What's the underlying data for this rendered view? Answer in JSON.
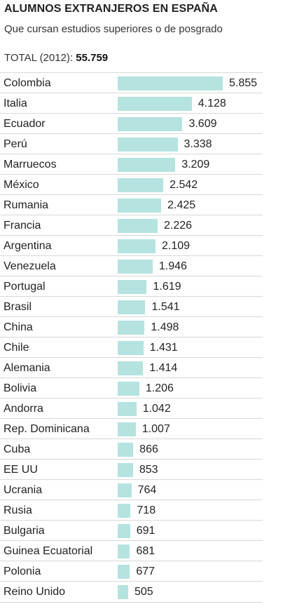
{
  "title": "ALUMNOS EXTRANJEROS EN ESPAÑA",
  "subtitle": "Que cursan estudios superiores o de posgrado",
  "total_label": "TOTAL (2012):",
  "total_value": "55.759",
  "colors": {
    "bar": "#b5e3df",
    "divider": "#d8d8d8",
    "text": "#222222"
  },
  "chart_data": {
    "type": "bar",
    "orientation": "horizontal",
    "categories": [
      "Colombia",
      "Italia",
      "Ecuador",
      "Perú",
      "Marruecos",
      "México",
      "Rumania",
      "Francia",
      "Argentina",
      "Venezuela",
      "Portugal",
      "Brasil",
      "China",
      "Chile",
      "Alemania",
      "Bolivia",
      "Andorra",
      "Rep. Dominicana",
      "Cuba",
      "EE UU",
      "Ucrania",
      "Rusia",
      "Bulgaria",
      "Guinea Ecuatorial",
      "Polonia",
      "Reino Unido"
    ],
    "values": [
      5855,
      4128,
      3609,
      3338,
      3209,
      2542,
      2425,
      2226,
      2109,
      1946,
      1619,
      1541,
      1498,
      1431,
      1414,
      1206,
      1042,
      1007,
      866,
      853,
      764,
      718,
      691,
      681,
      677,
      505
    ],
    "value_labels": [
      "5.855",
      "4.128",
      "3.609",
      "3.338",
      "3.209",
      "2.542",
      "2.425",
      "2.226",
      "2.109",
      "1.946",
      "1.619",
      "1.541",
      "1.498",
      "1.431",
      "1.414",
      "1.206",
      "1.042",
      "1.007",
      "866",
      "853",
      "764",
      "718",
      "691",
      "681",
      "677",
      "505"
    ],
    "xlim": [
      0,
      5855
    ],
    "grid": false,
    "legend": "none"
  }
}
